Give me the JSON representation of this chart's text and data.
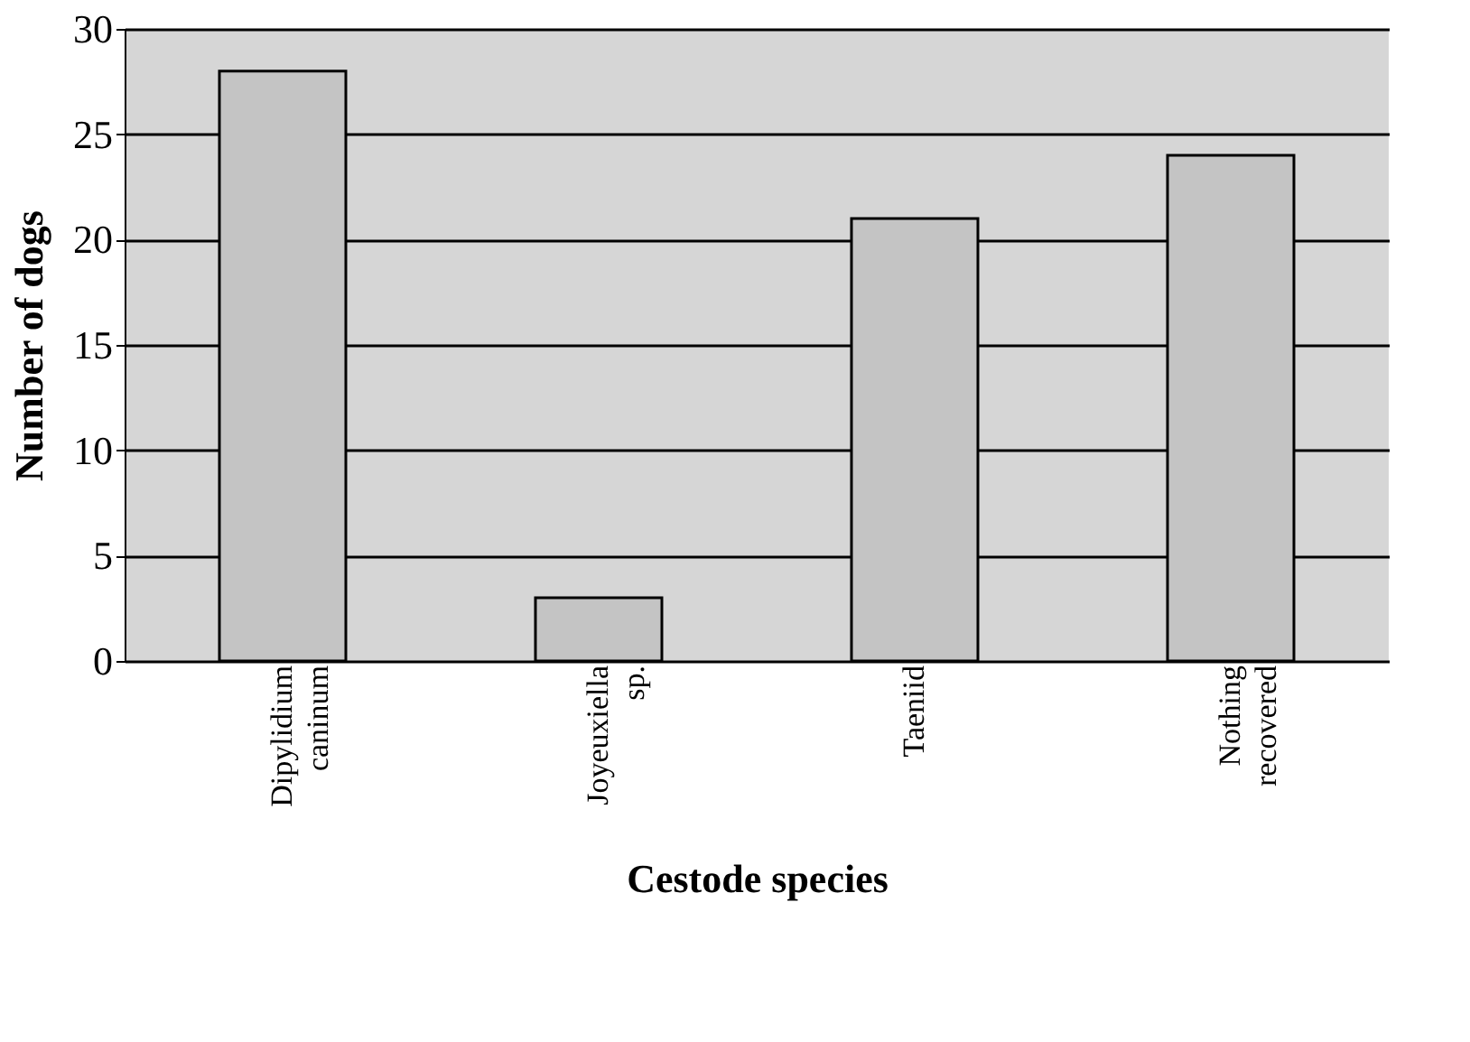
{
  "chart_data": {
    "type": "bar",
    "xlabel": "Cestode species",
    "ylabel": "Number of dogs",
    "categories": [
      "Dipylidium caninum",
      "Joyeuxiella sp.",
      "Taeniid",
      "Nothing recovered"
    ],
    "values": [
      28,
      3,
      21,
      24
    ],
    "color": "#c4c4c4",
    "ylim": [
      0,
      30
    ],
    "yticks": [
      0,
      5,
      10,
      15,
      20,
      25,
      30
    ],
    "grid": "y"
  }
}
